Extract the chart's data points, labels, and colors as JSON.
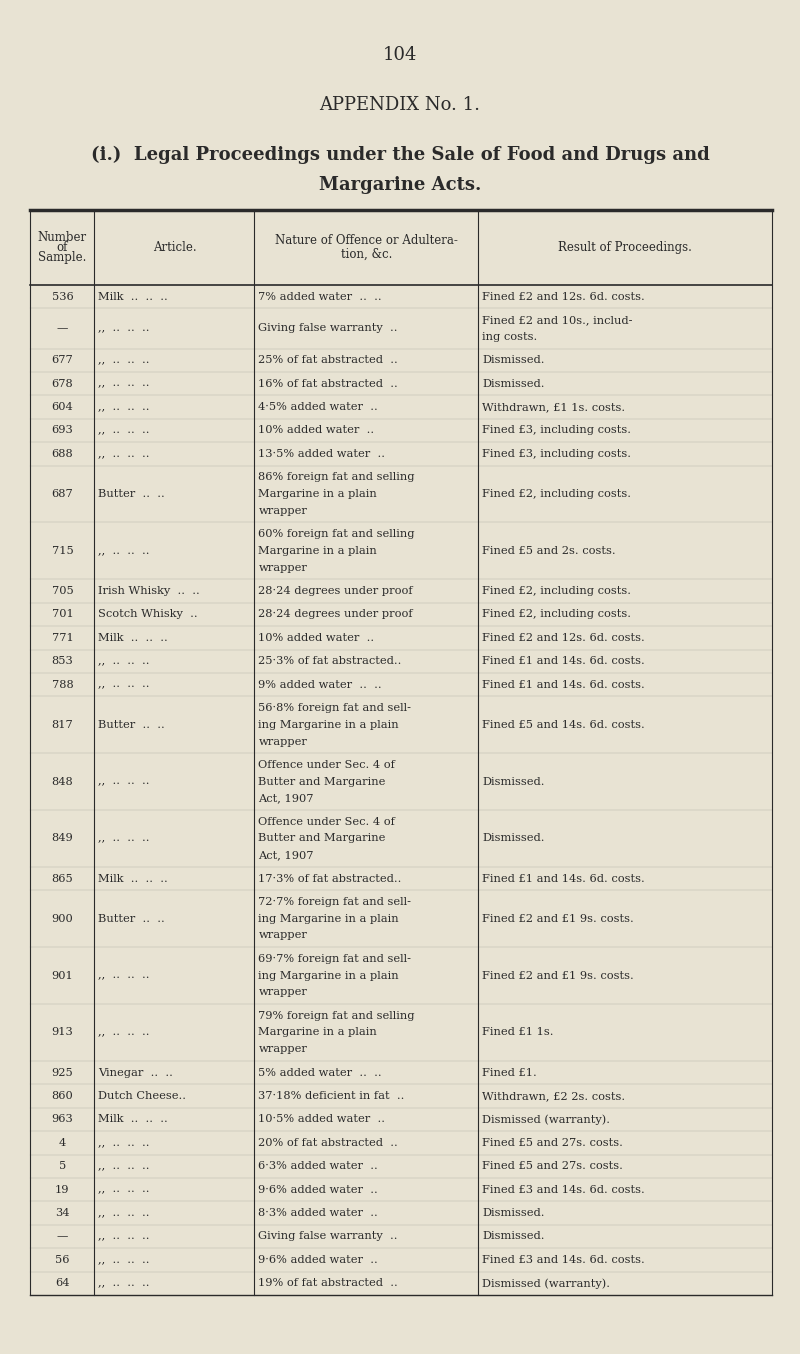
{
  "page_number": "104",
  "appendix_title": "APPENDIX No. 1.",
  "subtitle_line1": "(i.)  Legal Proceedings under the Sale of Food and Drugs and",
  "subtitle_line2": "Margarine Acts.",
  "background_color": "#e8e3d3",
  "text_color": "#2a2a2a",
  "header_cols": [
    "Number\nof\nSample.",
    "Article.",
    "Nature of Offence or Adultera-\ntion, &c.",
    "Result of Proceedings."
  ],
  "col_bounds": [
    0.038,
    0.118,
    0.318,
    0.598,
    0.965
  ],
  "rows": [
    [
      "536",
      "Milk  ..  ..  ..",
      "7% added water  ..  ..",
      "Fined £2 and 12s. 6d. costs."
    ],
    [
      "—",
      ",,  ..  ..  ..",
      "Giving false warranty  ..",
      "Fined £2 and 10s., includ-\ning costs."
    ],
    [
      "677",
      ",,  ..  ..  ..",
      "25% of fat abstracted  ..",
      "Dismissed."
    ],
    [
      "678",
      ",,  ..  ..  ..",
      "16% of fat abstracted  ..",
      "Dismissed."
    ],
    [
      "604",
      ",,  ..  ..  ..",
      "4·5% added water  ..",
      "Withdrawn, £1 1s. costs."
    ],
    [
      "693",
      ",,  ..  ..  ..",
      "10% added water  ..",
      "Fined £3, including costs."
    ],
    [
      "688",
      ",,  ..  ..  ..",
      "13·5% added water  ..",
      "Fined £3, including costs."
    ],
    [
      "687",
      "Butter  ..  ..",
      "86% foreign fat and selling\nMargarine in a plain\nwrapper",
      "Fined £2, including costs."
    ],
    [
      "715",
      ",,  ..  ..  ..",
      "60% foreign fat and selling\nMargarine in a plain\nwrapper",
      "Fined £5 and 2s. costs."
    ],
    [
      "705",
      "Irish Whisky  ..  ..",
      "28·24 degrees under proof",
      "Fined £2, including costs."
    ],
    [
      "701",
      "Scotch Whisky  ..",
      "28·24 degrees under proof",
      "Fined £2, including costs."
    ],
    [
      "771",
      "Milk  ..  ..  ..",
      "10% added water  ..",
      "Fined £2 and 12s. 6d. costs."
    ],
    [
      "853",
      ",,  ..  ..  ..",
      "25·3% of fat abstracted..",
      "Fined £1 and 14s. 6d. costs."
    ],
    [
      "788",
      ",,  ..  ..  ..",
      "9% added water  ..  ..",
      "Fined £1 and 14s. 6d. costs."
    ],
    [
      "817",
      "Butter  ..  ..",
      "56·8% foreign fat and sell-\ning Margarine in a plain\nwrapper",
      "Fined £5 and 14s. 6d. costs."
    ],
    [
      "848",
      ",,  ..  ..  ..",
      "Offence under Sec. 4 of\nButter and Margarine\nAct, 1907",
      "Dismissed."
    ],
    [
      "849",
      ",,  ..  ..  ..",
      "Offence under Sec. 4 of\nButter and Margarine\nAct, 1907",
      "Dismissed."
    ],
    [
      "865",
      "Milk  ..  ..  ..",
      "17·3% of fat abstracted..",
      "Fined £1 and 14s. 6d. costs."
    ],
    [
      "900",
      "Butter  ..  ..",
      "72·7% foreign fat and sell-\ning Margarine in a plain\nwrapper",
      "Fined £2 and £1 9s. costs."
    ],
    [
      "901",
      ",,  ..  ..  ..",
      "69·7% foreign fat and sell-\ning Margarine in a plain\nwrapper",
      "Fined £2 and £1 9s. costs."
    ],
    [
      "913",
      ",,  ..  ..  ..",
      "79% foreign fat and selling\nMargarine in a plain\nwrapper",
      "Fined £1 1s."
    ],
    [
      "925",
      "Vinegar  ..  ..",
      "5% added water  ..  ..",
      "Fined £1."
    ],
    [
      "860",
      "Dutch Cheese..",
      "37·18% deficient in fat  ..",
      "Withdrawn, £2 2s. costs."
    ],
    [
      "963",
      "Milk  ..  ..  ..",
      "10·5% added water  ..",
      "Dismissed (warranty)."
    ],
    [
      "4",
      ",,  ..  ..  ..",
      "20% of fat abstracted  ..",
      "Fined £5 and 27s. costs."
    ],
    [
      "5",
      ",,  ..  ..  ..",
      "6·3% added water  ..",
      "Fined £5 and 27s. costs."
    ],
    [
      "19",
      ",,  ..  ..  ..",
      "9·6% added water  ..",
      "Fined £3 and 14s. 6d. costs."
    ],
    [
      "34",
      ",,  ..  ..  ..",
      "8·3% added water  ..",
      "Dismissed."
    ],
    [
      "—",
      ",,  ..  ..  ..",
      "Giving false warranty  ..",
      "Dismissed."
    ],
    [
      "56",
      ",,  ..  ..  ..",
      "9·6% added water  ..",
      "Fined £3 and 14s. 6d. costs."
    ],
    [
      "64",
      ",,  ..  ..  ..",
      "19% of fat abstracted  ..",
      "Dismissed (warranty)."
    ]
  ],
  "row_nlines": [
    1,
    2,
    1,
    1,
    1,
    1,
    1,
    3,
    3,
    1,
    1,
    1,
    1,
    1,
    3,
    3,
    3,
    1,
    3,
    3,
    3,
    1,
    1,
    1,
    1,
    1,
    1,
    1,
    1,
    1,
    1
  ]
}
